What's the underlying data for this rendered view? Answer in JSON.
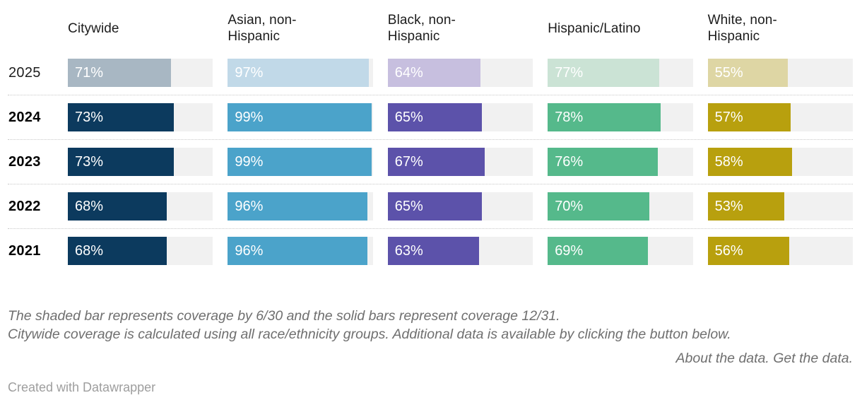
{
  "chart_data": {
    "type": "bar",
    "orientation": "horizontal",
    "unit": "%",
    "xlim": [
      0,
      100
    ],
    "grid": false,
    "legend": "none",
    "columns": [
      "Citywide",
      "Asian, non-\nHispanic",
      "Black, non-\nHispanic",
      "Hispanic/Latino",
      "White, non-\nHispanic"
    ],
    "rows": [
      {
        "year": "2025",
        "shaded": true,
        "values": [
          71,
          97,
          64,
          77,
          55
        ]
      },
      {
        "year": "2024",
        "shaded": false,
        "values": [
          73,
          99,
          65,
          78,
          57
        ]
      },
      {
        "year": "2023",
        "shaded": false,
        "values": [
          73,
          99,
          67,
          76,
          58
        ]
      },
      {
        "year": "2022",
        "shaded": false,
        "values": [
          68,
          96,
          65,
          70,
          53
        ]
      },
      {
        "year": "2021",
        "shaded": false,
        "values": [
          68,
          96,
          63,
          69,
          56
        ]
      }
    ]
  },
  "colors": {
    "solid": [
      "#0c3a5e",
      "#4ba3ca",
      "#5c52aa",
      "#55b98b",
      "#b8a00e"
    ],
    "shaded": [
      "#a8b7c3",
      "#c1d9e8",
      "#c7bfdf",
      "#cbe3d5",
      "#ded6a4"
    ],
    "track": "#f1f1f1"
  },
  "footer": {
    "note_line1": "The shaded bar represents coverage by 6/30 and the solid bars represent coverage 12/31.",
    "note_line2": "Citywide coverage is calculated using all race/ethnicity groups. Additional data is available by clicking the button below.",
    "about_link": "About the data.",
    "get_link": "Get the data.",
    "attribution": "Created with Datawrapper"
  }
}
